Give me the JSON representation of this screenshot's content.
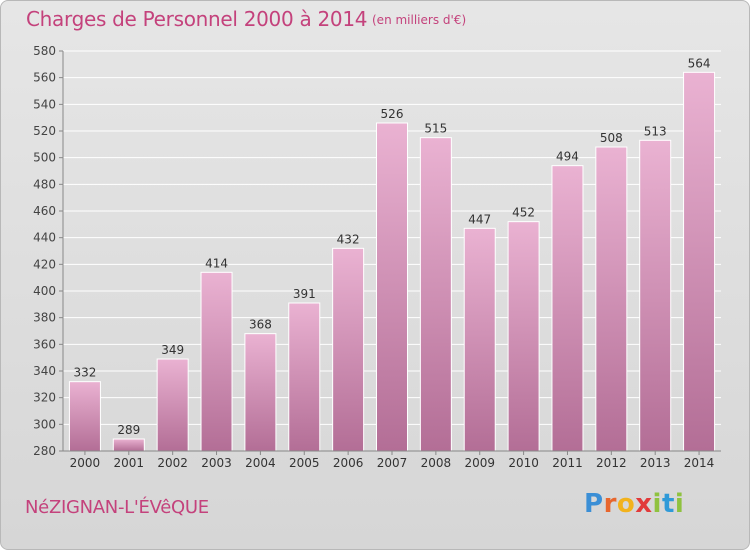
{
  "title": "Charges de Personnel 2000 à 2014",
  "subtitle": "(en milliers d'€)",
  "location": "NéZIGNAN-L'ÉVêQUE",
  "logo": {
    "letters": [
      "P",
      "r",
      "o",
      "x",
      "i",
      "t",
      "i"
    ],
    "colors": [
      "#3b8fd6",
      "#e8662d",
      "#f2b21c",
      "#e23a3a",
      "#8fc23f",
      "#2f9ad8",
      "#8fc23f"
    ]
  },
  "colors": {
    "bar_top": "#eab2d2",
    "bar_bottom": "#b36e96",
    "text_accent": "#c4427c"
  },
  "chart_data": {
    "type": "bar",
    "categories": [
      "2000",
      "2001",
      "2002",
      "2003",
      "2004",
      "2005",
      "2006",
      "2007",
      "2008",
      "2009",
      "2010",
      "2011",
      "2012",
      "2013",
      "2014"
    ],
    "values": [
      332,
      289,
      349,
      414,
      368,
      391,
      432,
      526,
      515,
      447,
      452,
      494,
      508,
      513,
      564
    ],
    "yticks": [
      280,
      300,
      320,
      340,
      360,
      380,
      400,
      420,
      440,
      460,
      480,
      500,
      520,
      540,
      560,
      580
    ],
    "ylim": [
      280,
      580
    ],
    "grid": true
  }
}
